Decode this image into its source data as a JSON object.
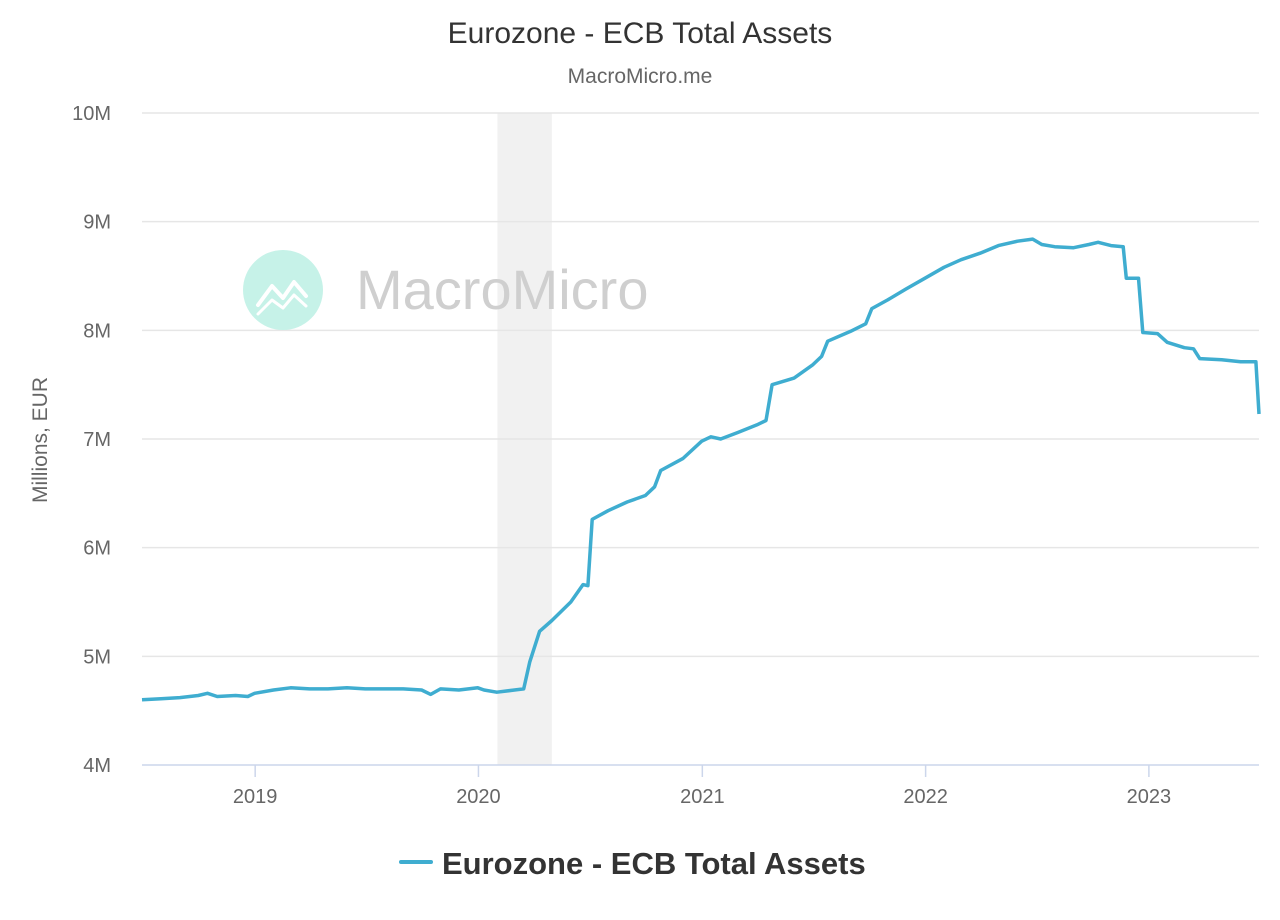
{
  "chart_data": {
    "type": "line",
    "title": "Eurozone - ECB Total Assets",
    "subtitle": "MacroMicro.me",
    "ylabel": "Millions, EUR",
    "xlabel": "",
    "watermark": "MacroMicro",
    "ylim": [
      4000000,
      10000000
    ],
    "xlim": [
      "2018-06-30",
      "2023-06-30"
    ],
    "y_ticks": [
      {
        "value": 4000000,
        "label": "4M"
      },
      {
        "value": 5000000,
        "label": "5M"
      },
      {
        "value": 6000000,
        "label": "6M"
      },
      {
        "value": 7000000,
        "label": "7M"
      },
      {
        "value": 8000000,
        "label": "8M"
      },
      {
        "value": 9000000,
        "label": "9M"
      },
      {
        "value": 10000000,
        "label": "10M"
      }
    ],
    "x_ticks": [
      {
        "value": "2019-01-01",
        "label": "2019"
      },
      {
        "value": "2020-01-01",
        "label": "2020"
      },
      {
        "value": "2021-01-01",
        "label": "2021"
      },
      {
        "value": "2022-01-01",
        "label": "2022"
      },
      {
        "value": "2023-01-01",
        "label": "2023"
      }
    ],
    "shaded_period": {
      "start": "2020-02-01",
      "end": "2020-04-30"
    },
    "grid": true,
    "legend_position": "bottom",
    "series": [
      {
        "name": "Eurozone - ECB Total Assets",
        "color": "#3fadd0",
        "points": [
          [
            "2018-06-30",
            4600000
          ],
          [
            "2018-07-31",
            4610000
          ],
          [
            "2018-08-31",
            4620000
          ],
          [
            "2018-09-30",
            4640000
          ],
          [
            "2018-10-15",
            4660000
          ],
          [
            "2018-10-31",
            4630000
          ],
          [
            "2018-11-30",
            4640000
          ],
          [
            "2018-12-20",
            4630000
          ],
          [
            "2018-12-31",
            4660000
          ],
          [
            "2019-01-31",
            4690000
          ],
          [
            "2019-02-28",
            4710000
          ],
          [
            "2019-03-31",
            4700000
          ],
          [
            "2019-04-30",
            4700000
          ],
          [
            "2019-05-31",
            4710000
          ],
          [
            "2019-06-30",
            4700000
          ],
          [
            "2019-07-31",
            4700000
          ],
          [
            "2019-08-31",
            4700000
          ],
          [
            "2019-09-30",
            4690000
          ],
          [
            "2019-10-15",
            4650000
          ],
          [
            "2019-10-31",
            4700000
          ],
          [
            "2019-11-30",
            4690000
          ],
          [
            "2019-12-31",
            4710000
          ],
          [
            "2020-01-10",
            4690000
          ],
          [
            "2020-01-31",
            4670000
          ],
          [
            "2020-02-29",
            4690000
          ],
          [
            "2020-03-15",
            4700000
          ],
          [
            "2020-03-25",
            4950000
          ],
          [
            "2020-04-10",
            5230000
          ],
          [
            "2020-04-30",
            5330000
          ],
          [
            "2020-05-31",
            5500000
          ],
          [
            "2020-06-20",
            5660000
          ],
          [
            "2020-06-28",
            5650000
          ],
          [
            "2020-07-05",
            6260000
          ],
          [
            "2020-07-31",
            6340000
          ],
          [
            "2020-08-31",
            6420000
          ],
          [
            "2020-09-30",
            6480000
          ],
          [
            "2020-10-15",
            6560000
          ],
          [
            "2020-10-25",
            6710000
          ],
          [
            "2020-11-30",
            6820000
          ],
          [
            "2020-12-31",
            6980000
          ],
          [
            "2021-01-15",
            7020000
          ],
          [
            "2021-01-31",
            7000000
          ],
          [
            "2021-02-28",
            7060000
          ],
          [
            "2021-03-31",
            7130000
          ],
          [
            "2021-04-15",
            7170000
          ],
          [
            "2021-04-25",
            7500000
          ],
          [
            "2021-05-31",
            7560000
          ],
          [
            "2021-06-30",
            7680000
          ],
          [
            "2021-07-15",
            7760000
          ],
          [
            "2021-07-25",
            7900000
          ],
          [
            "2021-08-31",
            7990000
          ],
          [
            "2021-09-25",
            8060000
          ],
          [
            "2021-10-05",
            8200000
          ],
          [
            "2021-10-31",
            8280000
          ],
          [
            "2021-11-30",
            8380000
          ],
          [
            "2021-12-31",
            8480000
          ],
          [
            "2022-01-31",
            8580000
          ],
          [
            "2022-02-28",
            8650000
          ],
          [
            "2022-03-31",
            8710000
          ],
          [
            "2022-04-30",
            8780000
          ],
          [
            "2022-05-31",
            8820000
          ],
          [
            "2022-06-25",
            8840000
          ],
          [
            "2022-07-10",
            8790000
          ],
          [
            "2022-07-31",
            8770000
          ],
          [
            "2022-08-31",
            8760000
          ],
          [
            "2022-09-25",
            8790000
          ],
          [
            "2022-10-10",
            8810000
          ],
          [
            "2022-10-31",
            8780000
          ],
          [
            "2022-11-20",
            8770000
          ],
          [
            "2022-11-25",
            8480000
          ],
          [
            "2022-12-15",
            8480000
          ],
          [
            "2022-12-22",
            7980000
          ],
          [
            "2023-01-15",
            7970000
          ],
          [
            "2023-01-31",
            7890000
          ],
          [
            "2023-02-28",
            7840000
          ],
          [
            "2023-03-15",
            7830000
          ],
          [
            "2023-03-25",
            7740000
          ],
          [
            "2023-04-30",
            7730000
          ],
          [
            "2023-05-31",
            7710000
          ],
          [
            "2023-06-25",
            7710000
          ],
          [
            "2023-06-30",
            7230000
          ]
        ]
      }
    ]
  }
}
